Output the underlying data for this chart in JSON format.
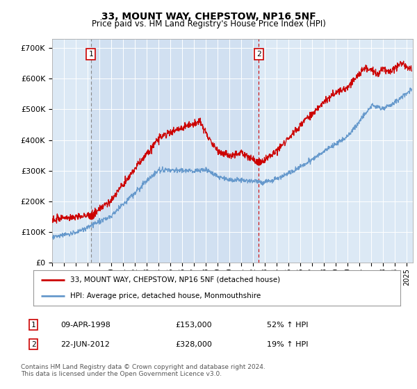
{
  "title": "33, MOUNT WAY, CHEPSTOW, NP16 5NF",
  "subtitle": "Price paid vs. HM Land Registry's House Price Index (HPI)",
  "ylabel_ticks": [
    "£0",
    "£100K",
    "£200K",
    "£300K",
    "£400K",
    "£500K",
    "£600K",
    "£700K"
  ],
  "ylim": [
    0,
    730000
  ],
  "xlim_start": 1995.0,
  "xlim_end": 2025.5,
  "sale1_x": 1998.27,
  "sale1_y": 153000,
  "sale1_label": "1",
  "sale2_x": 2012.47,
  "sale2_y": 328000,
  "sale2_label": "2",
  "red_color": "#cc0000",
  "blue_color": "#6699cc",
  "bg_color": "#dce9f5",
  "bg_highlight": "#c8d8ee",
  "grid_color": "#cccccc",
  "vline1_color": "#888888",
  "vline2_color": "#cc0000",
  "legend_line1": "33, MOUNT WAY, CHEPSTOW, NP16 5NF (detached house)",
  "legend_line2": "HPI: Average price, detached house, Monmouthshire",
  "table_row1_num": "1",
  "table_row1_date": "09-APR-1998",
  "table_row1_price": "£153,000",
  "table_row1_hpi": "52% ↑ HPI",
  "table_row2_num": "2",
  "table_row2_date": "22-JUN-2012",
  "table_row2_price": "£328,000",
  "table_row2_hpi": "19% ↑ HPI",
  "footer": "Contains HM Land Registry data © Crown copyright and database right 2024.\nThis data is licensed under the Open Government Licence v3.0."
}
